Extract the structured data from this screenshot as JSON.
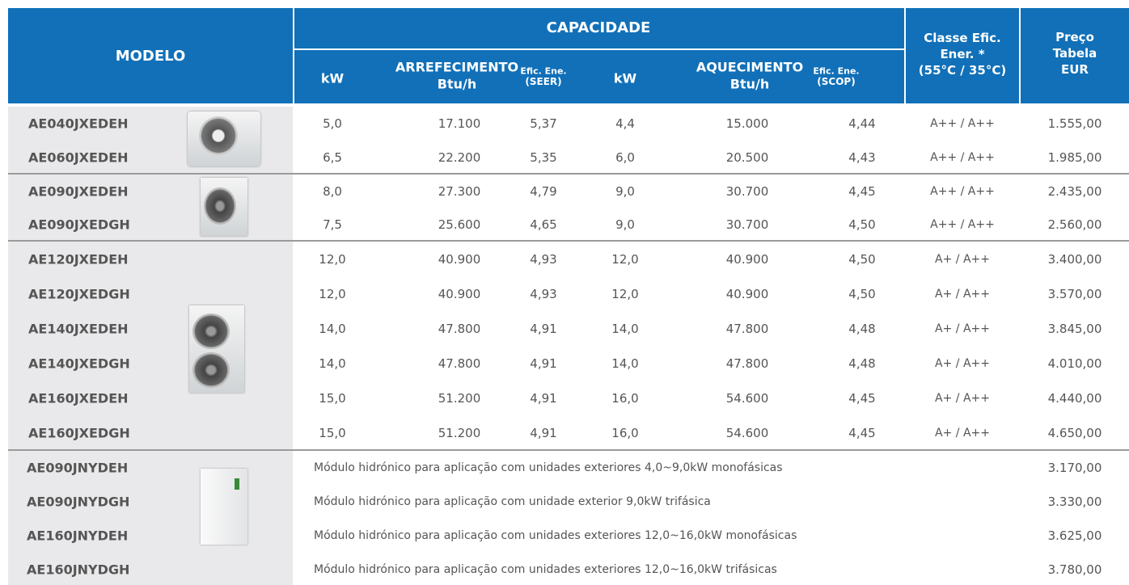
{
  "header": {
    "model": "MODELO",
    "capacity": "CAPACIDADE",
    "cooling": {
      "kw": "kW",
      "title": "ARREFECIMENTO",
      "unit": "Btu/h",
      "eff": [
        "Efic. Ene.",
        "(SEER)"
      ]
    },
    "heating": {
      "kw": "kW",
      "title": "AQUECIMENTO",
      "unit": "Btu/h",
      "eff": [
        "Efic. Ene.",
        "(SCOP)"
      ]
    },
    "energy_class": [
      "Classe Efic.",
      "Ener. *",
      "(55°C / 35°C)"
    ],
    "price": [
      "Preço",
      "Tabela",
      "EUR"
    ]
  },
  "groups": [
    {
      "rows": [
        [
          "AE040JXEDEH",
          "5,0",
          "17.100",
          "5,37",
          "4,4",
          "15.000",
          "4,44",
          "A++ / A++",
          "1.555,00"
        ],
        [
          "AE060JXEDEH",
          "6,5",
          "22.200",
          "5,35",
          "6,0",
          "20.500",
          "4,43",
          "A++ / A++",
          "1.985,00"
        ]
      ]
    },
    {
      "rows": [
        [
          "AE090JXEDEH",
          "8,0",
          "27.300",
          "4,79",
          "9,0",
          "30.700",
          "4,45",
          "A++ / A++",
          "2.435,00"
        ],
        [
          "AE090JXEDGH",
          "7,5",
          "25.600",
          "4,65",
          "9,0",
          "30.700",
          "4,50",
          "A++ / A++",
          "2.560,00"
        ]
      ]
    },
    {
      "rows": [
        [
          "AE120JXEDEH",
          "12,0",
          "40.900",
          "4,93",
          "12,0",
          "40.900",
          "4,50",
          "A+ / A++",
          "3.400,00"
        ],
        [
          "AE120JXEDGH",
          "12,0",
          "40.900",
          "4,93",
          "12,0",
          "40.900",
          "4,50",
          "A+ / A++",
          "3.570,00"
        ],
        [
          "AE140JXEDEH",
          "14,0",
          "47.800",
          "4,91",
          "14,0",
          "47.800",
          "4,48",
          "A+ / A++",
          "3.845,00"
        ],
        [
          "AE140JXEDGH",
          "14,0",
          "47.800",
          "4,91",
          "14,0",
          "47.800",
          "4,48",
          "A+ / A++",
          "4.010,00"
        ],
        [
          "AE160JXEDEH",
          "15,0",
          "51.200",
          "4,91",
          "16,0",
          "54.600",
          "4,45",
          "A+ / A++",
          "4.440,00"
        ],
        [
          "AE160JXEDGH",
          "15,0",
          "51.200",
          "4,91",
          "16,0",
          "54.600",
          "4,45",
          "A+ / A++",
          "4.650,00"
        ]
      ]
    },
    {
      "rows": [
        [
          "AE090JNYDEH",
          "Módulo hidrónico para aplicação com unidades exteriores 4,0~9,0kW monofásicas",
          "3.170,00"
        ],
        [
          "AE090JNYDGH",
          "Módulo hidrónico para aplicação com unidade exterior 9,0kW trifásica",
          "3.330,00"
        ],
        [
          "AE160JNYDEH",
          "Módulo hidrónico para aplicação com unidades exteriores 12,0~16,0kW monofásicas",
          "3.625,00"
        ],
        [
          "AE160JNYDGH",
          "Módulo hidrónico para aplicação com unidades exteriores 12,0~16,0kW trifásicas",
          "3.780,00"
        ]
      ]
    }
  ]
}
